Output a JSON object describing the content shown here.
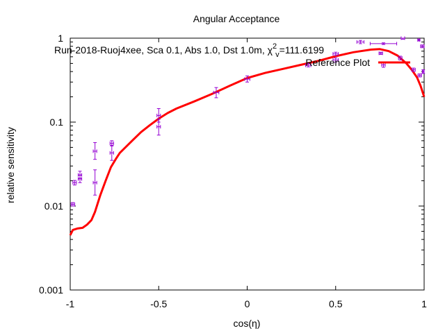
{
  "chart_data": {
    "type": "scatter",
    "title": "Angular Acceptance",
    "xlabel": "cos(η)",
    "ylabel": "relative sensitivity",
    "xlim": [
      -1,
      1
    ],
    "ylim": [
      0.001,
      1
    ],
    "yscale": "log",
    "grid": false,
    "legend_position": "top-right",
    "xticks": [
      {
        "value": -1,
        "label": "-1"
      },
      {
        "value": -0.5,
        "label": "-0.5"
      },
      {
        "value": 0,
        "label": "0"
      },
      {
        "value": 0.5,
        "label": "0.5"
      },
      {
        "value": 1,
        "label": "1"
      }
    ],
    "yticks": [
      {
        "value": 0.001,
        "label": "0.001"
      },
      {
        "value": 0.01,
        "label": "0.01"
      },
      {
        "value": 0.1,
        "label": "0.1"
      },
      {
        "value": 1,
        "label": "1"
      }
    ],
    "annotation": {
      "prefix": "Run-2018-Ruoj4xee, Sca 0.1, Abs 1.0, Dst 1.0m, χ",
      "sup": "2",
      "sub": "v",
      "suffix": "=111.6199"
    },
    "series": [
      {
        "name": "",
        "kind": "points",
        "color": "#9400d3",
        "points": [
          {
            "x": -0.985,
            "y": 0.0105,
            "ylo": 0.01,
            "yhi": 0.011,
            "xerr": 0.01
          },
          {
            "x": -0.975,
            "y": 0.019,
            "ylo": 0.0178,
            "yhi": 0.0202,
            "xerr": 0.01
          },
          {
            "x": -0.945,
            "y": 0.021,
            "ylo": 0.019,
            "yhi": 0.0232,
            "xerr": 0.01
          },
          {
            "x": -0.945,
            "y": 0.0235,
            "ylo": 0.0215,
            "yhi": 0.026,
            "xerr": 0.01
          },
          {
            "x": -0.86,
            "y": 0.045,
            "ylo": 0.036,
            "yhi": 0.057,
            "xerr": 0.01
          },
          {
            "x": -0.86,
            "y": 0.019,
            "ylo": 0.0135,
            "yhi": 0.027,
            "xerr": 0.01
          },
          {
            "x": -0.765,
            "y": 0.043,
            "ylo": 0.035,
            "yhi": 0.053,
            "xerr": 0.01
          },
          {
            "x": -0.765,
            "y": 0.056,
            "ylo": 0.052,
            "yhi": 0.06,
            "xerr": 0.01
          },
          {
            "x": -0.5,
            "y": 0.12,
            "ylo": 0.1,
            "yhi": 0.145,
            "xerr": 0.01
          },
          {
            "x": -0.5,
            "y": 0.088,
            "ylo": 0.07,
            "yhi": 0.108,
            "xerr": 0.01
          },
          {
            "x": -0.175,
            "y": 0.225,
            "ylo": 0.195,
            "yhi": 0.258,
            "xerr": 0.015
          },
          {
            "x": 0.0,
            "y": 0.325,
            "ylo": 0.3,
            "yhi": 0.355,
            "xerr": 0.015
          },
          {
            "x": 0.345,
            "y": 0.475,
            "ylo": 0.455,
            "yhi": 0.5,
            "xerr": 0.015
          },
          {
            "x": 0.5,
            "y": 0.55,
            "ylo": 0.52,
            "yhi": 0.58,
            "xerr": 0.015
          },
          {
            "x": 0.5,
            "y": 0.65,
            "ylo": 0.62,
            "yhi": 0.68,
            "xerr": 0.015
          },
          {
            "x": 0.64,
            "y": 0.9,
            "ylo": 0.86,
            "yhi": 0.94,
            "xerr": 0.02
          },
          {
            "x": 0.755,
            "y": 0.66,
            "ylo": 0.64,
            "yhi": 0.68,
            "xerr": 0.01
          },
          {
            "x": 0.77,
            "y": 0.86,
            "ylo": 0.84,
            "yhi": 0.88,
            "xerr": 0.075
          },
          {
            "x": 0.77,
            "y": 0.48,
            "ylo": 0.45,
            "yhi": 0.51,
            "xerr": 0.01
          },
          {
            "x": 0.865,
            "y": 0.58,
            "ylo": 0.55,
            "yhi": 0.61,
            "xerr": 0.01
          },
          {
            "x": 0.88,
            "y": 1.0,
            "ylo": 0.97,
            "yhi": 1.0,
            "xerr": 0.01
          },
          {
            "x": 0.94,
            "y": 0.42,
            "ylo": 0.4,
            "yhi": 0.44,
            "xerr": 0.01
          },
          {
            "x": 0.975,
            "y": 0.36,
            "ylo": 0.345,
            "yhi": 0.375,
            "xerr": 0.01
          },
          {
            "x": 0.99,
            "y": 0.8,
            "ylo": 0.77,
            "yhi": 0.83,
            "xerr": 0.01
          },
          {
            "x": 0.995,
            "y": 0.4,
            "ylo": 0.38,
            "yhi": 0.42,
            "xerr": 0.005
          },
          {
            "x": 0.97,
            "y": 0.95,
            "ylo": 0.93,
            "yhi": 0.97,
            "xerr": 0.005
          }
        ]
      },
      {
        "name": "Reference Plot",
        "kind": "line",
        "color": "#ff0000",
        "x": [
          -1.0,
          -0.985,
          -0.96,
          -0.93,
          -0.905,
          -0.88,
          -0.86,
          -0.83,
          -0.8,
          -0.77,
          -0.74,
          -0.72,
          -0.65,
          -0.6,
          -0.55,
          -0.5,
          -0.45,
          -0.4,
          -0.3,
          -0.2,
          -0.1,
          0.0,
          0.1,
          0.2,
          0.3,
          0.4,
          0.5,
          0.6,
          0.7,
          0.75,
          0.8,
          0.85,
          0.9,
          0.93,
          0.96,
          0.98,
          1.0
        ],
        "y": [
          0.0045,
          0.0052,
          0.0054,
          0.0055,
          0.006,
          0.0068,
          0.0085,
          0.0135,
          0.02,
          0.029,
          0.037,
          0.043,
          0.06,
          0.076,
          0.092,
          0.11,
          0.128,
          0.145,
          0.176,
          0.216,
          0.27,
          0.335,
          0.385,
          0.43,
          0.48,
          0.535,
          0.61,
          0.68,
          0.73,
          0.74,
          0.7,
          0.62,
          0.5,
          0.42,
          0.34,
          0.27,
          0.2
        ]
      }
    ]
  }
}
